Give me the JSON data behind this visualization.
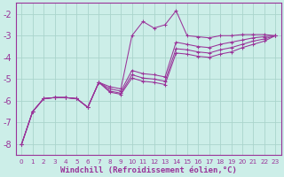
{
  "background_color": "#cceee8",
  "grid_color": "#aad4cc",
  "line_color": "#993399",
  "xlim": [
    -0.5,
    23.5
  ],
  "ylim": [
    -8.5,
    -1.5
  ],
  "yticks": [
    -8,
    -7,
    -6,
    -5,
    -4,
    -3,
    -2
  ],
  "xticks": [
    0,
    1,
    2,
    3,
    4,
    5,
    6,
    7,
    8,
    9,
    10,
    11,
    12,
    13,
    14,
    15,
    16,
    17,
    18,
    19,
    20,
    21,
    22,
    23
  ],
  "xlabel": "Windchill (Refroidissement éolien,°C)",
  "xlabel_color": "#993399",
  "xlabel_fontsize": 6.5,
  "ytick_fontsize": 7,
  "xtick_fontsize": 5.2,
  "x": [
    0,
    1,
    2,
    3,
    4,
    5,
    6,
    7,
    8,
    9,
    10,
    11,
    12,
    13,
    14,
    15,
    16,
    17,
    18,
    19,
    20,
    21,
    22,
    23
  ],
  "lines": [
    [
      -8.0,
      -6.5,
      -5.9,
      -5.85,
      -5.85,
      -5.9,
      -6.3,
      -5.15,
      -5.35,
      -5.45,
      -3.0,
      -2.35,
      -2.65,
      -2.5,
      -1.85,
      -3.0,
      -3.05,
      -3.1,
      -3.0,
      -3.0,
      -2.95,
      -2.95,
      -2.95,
      -3.0
    ],
    [
      -8.0,
      -6.5,
      -5.9,
      -5.85,
      -5.85,
      -5.9,
      -6.3,
      -5.15,
      -5.45,
      -5.55,
      -4.6,
      -4.75,
      -4.8,
      -4.9,
      -3.3,
      -3.4,
      -3.5,
      -3.55,
      -3.4,
      -3.3,
      -3.2,
      -3.1,
      -3.05,
      -3.0
    ],
    [
      -8.0,
      -6.5,
      -5.9,
      -5.85,
      -5.85,
      -5.9,
      -6.3,
      -5.15,
      -5.55,
      -5.65,
      -4.8,
      -4.95,
      -5.0,
      -5.1,
      -3.6,
      -3.65,
      -3.75,
      -3.8,
      -3.65,
      -3.55,
      -3.4,
      -3.25,
      -3.15,
      -3.0
    ],
    [
      -8.0,
      -6.5,
      -5.9,
      -5.85,
      -5.85,
      -5.9,
      -6.3,
      -5.15,
      -5.6,
      -5.7,
      -4.95,
      -5.1,
      -5.15,
      -5.25,
      -3.8,
      -3.85,
      -3.95,
      -4.0,
      -3.85,
      -3.75,
      -3.55,
      -3.4,
      -3.25,
      -3.0
    ]
  ]
}
